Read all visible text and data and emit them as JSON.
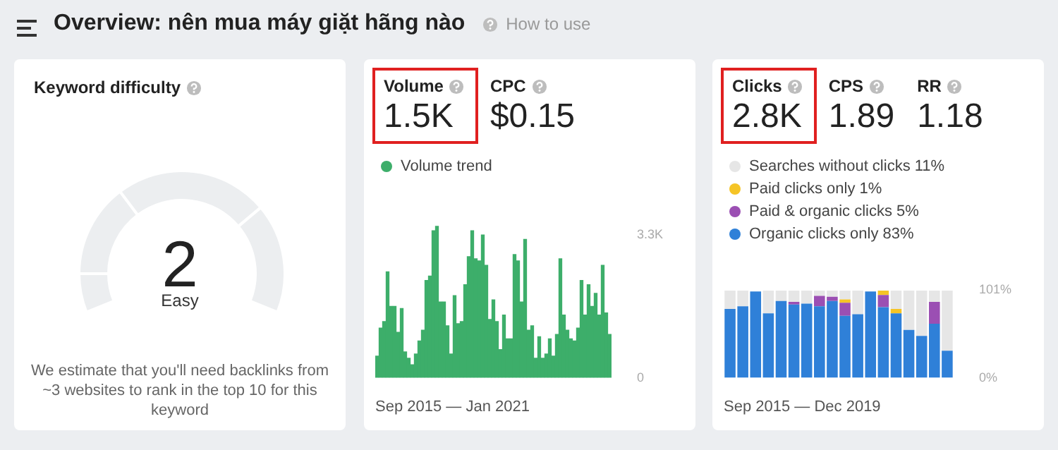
{
  "chart_data": [
    {
      "type": "other",
      "title": "Keyword difficulty",
      "annotations": [
        "Overview: nên mua máy giặt hãng nào",
        "How to use",
        "2",
        "Easy",
        "We estimate that you'll need backlinks from ~3 websites to rank in the top 10 for this keyword"
      ]
    },
    {
      "type": "bar",
      "title": "Volume",
      "annotations": [
        "1.5K",
        "CPC",
        "$0.15"
      ],
      "xlabel": "Sep 2015 — Jan 2021",
      "legend": "top",
      "tick_labels": "y",
      "categories": [
        null,
        null,
        null,
        null,
        null,
        null,
        null,
        null,
        null,
        null,
        null,
        null,
        null,
        null,
        null,
        null,
        null,
        null,
        null,
        null,
        null,
        null,
        null,
        null,
        null,
        null,
        null,
        null,
        null,
        null,
        null,
        null,
        null,
        null,
        null,
        null,
        null,
        null,
        null,
        null,
        null,
        null,
        null,
        null,
        null,
        null,
        null,
        null,
        null,
        null,
        null,
        null,
        null,
        null,
        null,
        null,
        null,
        null,
        null,
        null,
        null,
        null,
        null,
        null,
        null,
        null,
        null
      ],
      "ylim": [
        0,
        3600
      ],
      "yticks": [
        {
          "value": 0,
          "label": "0"
        },
        {
          "value": 3300,
          "label": "3.3K"
        }
      ],
      "series": [
        {
          "name": "Volume trend",
          "color": "#3dae6a",
          "values": [
            500,
            1150,
            1300,
            2450,
            1650,
            1650,
            1050,
            1600,
            600,
            450,
            300,
            550,
            850,
            1100,
            2250,
            2350,
            3400,
            3500,
            1750,
            1750,
            1200,
            550,
            1900,
            1250,
            1300,
            2150,
            2800,
            3400,
            2750,
            2700,
            3300,
            2600,
            1350,
            1800,
            1300,
            650,
            1450,
            900,
            900,
            2850,
            2700,
            1750,
            3200,
            1100,
            1200,
            450,
            950,
            450,
            550,
            900,
            500,
            1000,
            2750,
            1450,
            1100,
            900,
            850,
            1150,
            2250,
            1450,
            2150,
            1650,
            1950,
            1450,
            2600,
            1500,
            1000
          ]
        }
      ]
    },
    {
      "type": "bar",
      "title": "Clicks",
      "annotations": [
        "2.8K",
        "CPS",
        "1.89",
        "RR",
        "1.18"
      ],
      "xlabel": "Sep 2015 — Dec 2019",
      "legend": "top",
      "tick_labels": "y",
      "stacked": true,
      "categories": [
        null,
        null,
        null,
        null,
        null,
        null,
        null,
        null,
        null,
        null,
        null,
        null,
        null,
        null,
        null,
        null,
        null,
        null
      ],
      "ylim": [
        0,
        101
      ],
      "yticks": [
        {
          "value": 0,
          "label": "0%"
        },
        {
          "value": 101,
          "label": "101%"
        }
      ],
      "series": [
        {
          "name": "Organic clicks only 83%",
          "color": "#2f80d8",
          "values": [
            79,
            82,
            99,
            74,
            88,
            84,
            85,
            82,
            88,
            71,
            73,
            99,
            81,
            74,
            55,
            48,
            62,
            31
          ]
        },
        {
          "name": "Paid & organic clicks 5%",
          "color": "#9b4fb3",
          "values": [
            0,
            0,
            0,
            0,
            0,
            3,
            0,
            12,
            5,
            15,
            0,
            0,
            14,
            0,
            0,
            0,
            25,
            0
          ]
        },
        {
          "name": "Paid clicks only 1%",
          "color": "#f5c426",
          "values": [
            0,
            0,
            0,
            0,
            0,
            0,
            0,
            0,
            0,
            4,
            0,
            0,
            5,
            5,
            0,
            0,
            0,
            0
          ]
        },
        {
          "name": "Searches without clicks 11%",
          "color": "#e6e6e6",
          "values": [
            21,
            18,
            null,
            26,
            12,
            13,
            15,
            6,
            7,
            10,
            27,
            null,
            0,
            21,
            45,
            52,
            13,
            69
          ]
        }
      ]
    }
  ]
}
